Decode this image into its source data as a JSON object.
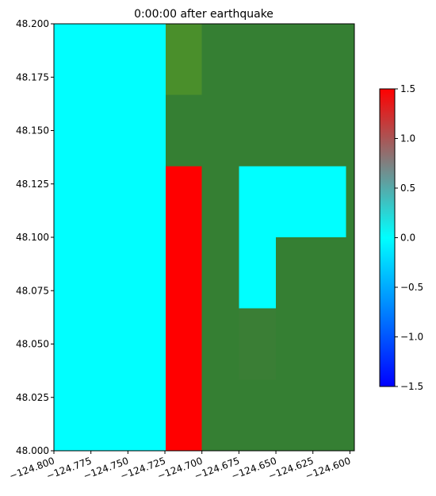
{
  "chart_data": {
    "type": "heatmap",
    "title": "0:00:00 after earthquake",
    "xlabel": "",
    "ylabel": "",
    "xlim": [
      -124.8,
      -124.597
    ],
    "ylim": [
      48.0,
      48.2
    ],
    "x_ticks": [
      -124.8,
      -124.775,
      -124.75,
      -124.725,
      -124.7,
      -124.675,
      -124.65,
      -124.625,
      -124.6
    ],
    "x_tick_labels": [
      "−124.800",
      "−124.775",
      "−124.750",
      "−124.725",
      "−124.700",
      "−124.675",
      "−124.650",
      "−124.625",
      "−124.600"
    ],
    "y_ticks": [
      48.0,
      48.025,
      48.05,
      48.075,
      48.1,
      48.125,
      48.15,
      48.175,
      48.2
    ],
    "y_tick_labels": [
      "48.000",
      "48.025",
      "48.050",
      "48.075",
      "48.100",
      "48.125",
      "48.150",
      "48.175",
      "48.200"
    ],
    "grid": false,
    "land_color": "#357f33",
    "land_highlight_color": "#4a8f2b",
    "land_shade_color": "#3a7e35",
    "cells": [
      {
        "x0": -124.8,
        "x1": -124.7245,
        "y0": 48.0,
        "y1": 48.2,
        "kind": "water",
        "value": 0.0
      },
      {
        "x0": -124.7245,
        "x1": -124.7,
        "y0": 48.0,
        "y1": 48.1333,
        "kind": "water",
        "value": 1.5
      },
      {
        "x0": -124.7245,
        "x1": -124.7,
        "y0": 48.1333,
        "y1": 48.1667,
        "kind": "land",
        "variant": "base"
      },
      {
        "x0": -124.7245,
        "x1": -124.7,
        "y0": 48.1667,
        "y1": 48.2,
        "kind": "land",
        "variant": "highlight"
      },
      {
        "x0": -124.7,
        "x1": -124.675,
        "y0": 48.0,
        "y1": 48.2,
        "kind": "land",
        "variant": "base"
      },
      {
        "x0": -124.675,
        "x1": -124.65,
        "y0": 48.0,
        "y1": 48.0333,
        "kind": "land",
        "variant": "base"
      },
      {
        "x0": -124.675,
        "x1": -124.65,
        "y0": 48.0333,
        "y1": 48.0667,
        "kind": "land",
        "variant": "shade"
      },
      {
        "x0": -124.675,
        "x1": -124.65,
        "y0": 48.0667,
        "y1": 48.1333,
        "kind": "water",
        "value": 0.0
      },
      {
        "x0": -124.675,
        "x1": -124.65,
        "y0": 48.1333,
        "y1": 48.2,
        "kind": "land",
        "variant": "base"
      },
      {
        "x0": -124.65,
        "x1": -124.625,
        "y0": 48.0,
        "y1": 48.1,
        "kind": "land",
        "variant": "base"
      },
      {
        "x0": -124.65,
        "x1": -124.625,
        "y0": 48.1,
        "y1": 48.1333,
        "kind": "water",
        "value": 0.0
      },
      {
        "x0": -124.65,
        "x1": -124.625,
        "y0": 48.1333,
        "y1": 48.2,
        "kind": "land",
        "variant": "base"
      },
      {
        "x0": -124.625,
        "x1": -124.597,
        "y0": 48.0,
        "y1": 48.1,
        "kind": "land",
        "variant": "base"
      },
      {
        "x0": -124.625,
        "x1": -124.6025,
        "y0": 48.1,
        "y1": 48.1333,
        "kind": "water",
        "value": 0.0
      },
      {
        "x0": -124.6025,
        "x1": -124.597,
        "y0": 48.1,
        "y1": 48.1333,
        "kind": "land",
        "variant": "base"
      },
      {
        "x0": -124.625,
        "x1": -124.597,
        "y0": 48.1333,
        "y1": 48.2,
        "kind": "land",
        "variant": "base"
      }
    ],
    "colorbar": {
      "min": -1.5,
      "max": 1.5,
      "ticks": [
        -1.5,
        -1.0,
        -0.5,
        0.0,
        0.5,
        1.0,
        1.5
      ],
      "tick_labels": [
        "−1.5",
        "−1.0",
        "−0.5",
        "0.0",
        "0.5",
        "1.0",
        "1.5"
      ],
      "colors": [
        "#0000ff",
        "#00ffff",
        "#ff0000"
      ]
    }
  }
}
